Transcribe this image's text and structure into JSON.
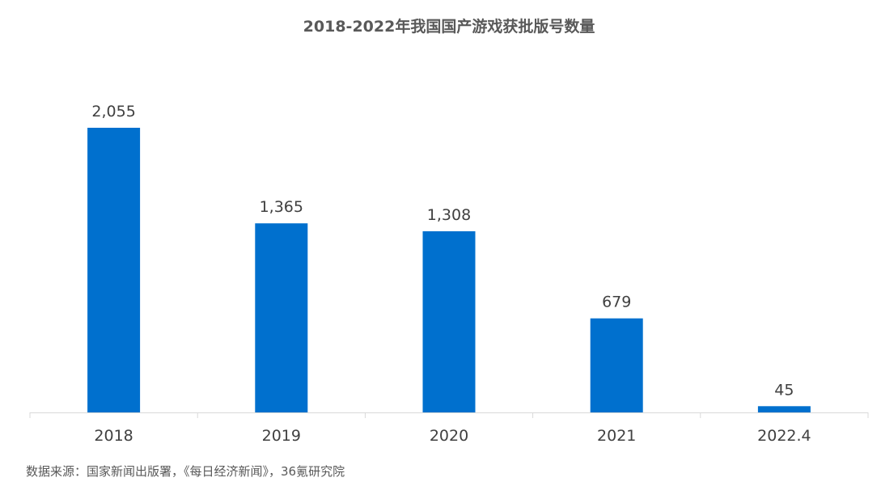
{
  "chart_data": {
    "type": "bar",
    "title": "2018-2022年我国国产游戏获批版号数量",
    "categories": [
      "2018",
      "2019",
      "2020",
      "2021",
      "2022.4"
    ],
    "values": [
      2055,
      1365,
      1308,
      679,
      45
    ],
    "value_labels": [
      "2,055",
      "1,365",
      "1,308",
      "679",
      "45"
    ],
    "xlabel": "",
    "ylabel": "",
    "ylim": [
      0,
      2055
    ],
    "grid": false,
    "legend": "none",
    "bar_color": "#0070CE",
    "axis_color": "#D9D9D9",
    "text_color": "#404040"
  },
  "source": "数据来源：国家新闻出版署，《每日经济新闻》，36氪研究院"
}
